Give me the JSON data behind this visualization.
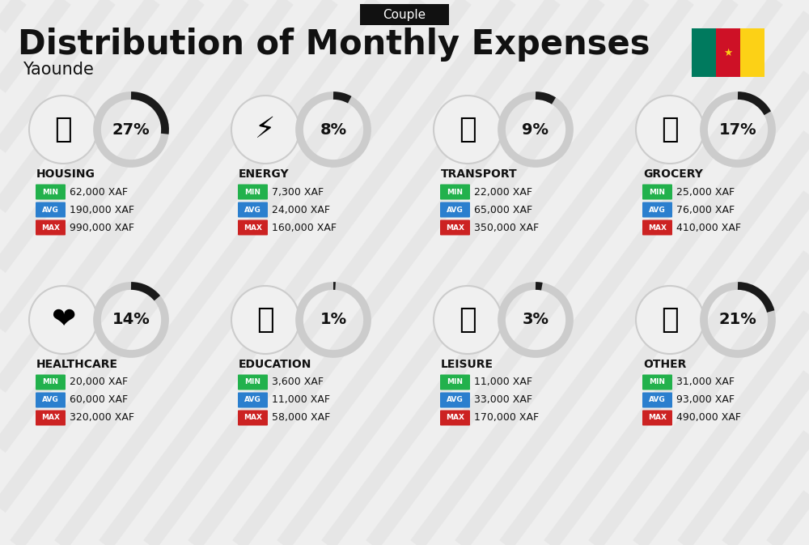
{
  "title": "Distribution of Monthly Expenses",
  "subtitle": "Yaounde",
  "badge": "Couple",
  "background_color": "#efefef",
  "categories": [
    {
      "name": "HOUSING",
      "pct": 27,
      "min": "62,000 XAF",
      "avg": "190,000 XAF",
      "max": "990,000 XAF",
      "icon": "🏗",
      "row": 0,
      "col": 0
    },
    {
      "name": "ENERGY",
      "pct": 8,
      "min": "7,300 XAF",
      "avg": "24,000 XAF",
      "max": "160,000 XAF",
      "icon": "⚡",
      "row": 0,
      "col": 1
    },
    {
      "name": "TRANSPORT",
      "pct": 9,
      "min": "22,000 XAF",
      "avg": "65,000 XAF",
      "max": "350,000 XAF",
      "icon": "🚌",
      "row": 0,
      "col": 2
    },
    {
      "name": "GROCERY",
      "pct": 17,
      "min": "25,000 XAF",
      "avg": "76,000 XAF",
      "max": "410,000 XAF",
      "icon": "🛒",
      "row": 0,
      "col": 3
    },
    {
      "name": "HEALTHCARE",
      "pct": 14,
      "min": "20,000 XAF",
      "avg": "60,000 XAF",
      "max": "320,000 XAF",
      "icon": "❤",
      "row": 1,
      "col": 0
    },
    {
      "name": "EDUCATION",
      "pct": 1,
      "min": "3,600 XAF",
      "avg": "11,000 XAF",
      "max": "58,000 XAF",
      "icon": "🎓",
      "row": 1,
      "col": 1
    },
    {
      "name": "LEISURE",
      "pct": 3,
      "min": "11,000 XAF",
      "avg": "33,000 XAF",
      "max": "170,000 XAF",
      "icon": "🛍",
      "row": 1,
      "col": 2
    },
    {
      "name": "OTHER",
      "pct": 21,
      "min": "31,000 XAF",
      "avg": "93,000 XAF",
      "max": "490,000 XAF",
      "icon": "💰",
      "row": 1,
      "col": 3
    }
  ],
  "min_color": "#22b14c",
  "avg_color": "#2b7fce",
  "max_color": "#cc2222",
  "title_color": "#111111",
  "category_color": "#111111",
  "pct_color": "#111111",
  "badge_bg": "#111111",
  "badge_fg": "#ffffff",
  "donut_bg": "#cccccc",
  "donut_fill": "#1a1a1a",
  "flag_colors": [
    "#007a5e",
    "#ce1126",
    "#fcd116"
  ],
  "stripe_color": "#e0e0e0",
  "card_bg": "#f7f7f7"
}
